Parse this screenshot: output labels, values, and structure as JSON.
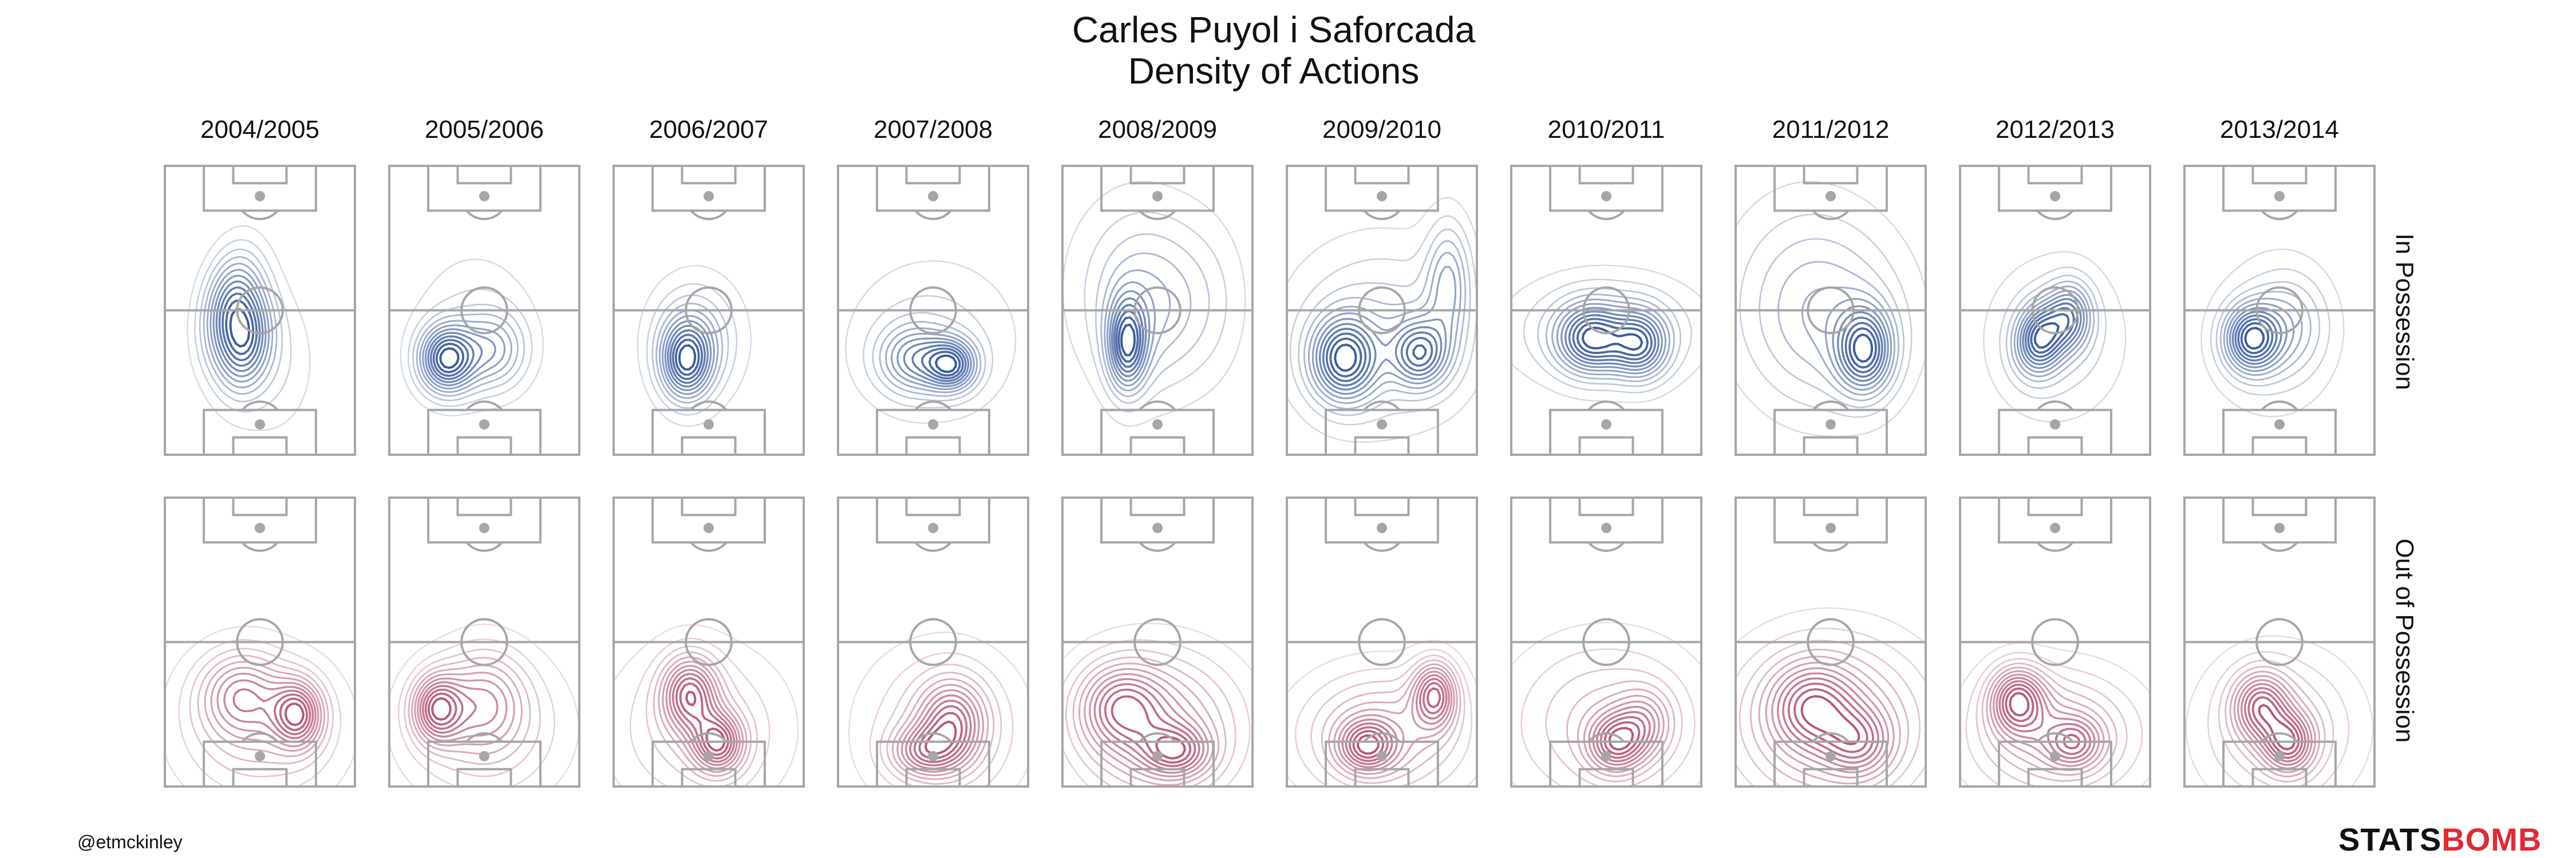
{
  "chart_data": {
    "type": "contour-density",
    "title_lines": [
      "Carles Puyol i Saforcada",
      "Density of Actions"
    ],
    "seasons": [
      "2004/2005",
      "2005/2006",
      "2006/2007",
      "2007/2008",
      "2008/2009",
      "2009/2010",
      "2010/2011",
      "2011/2012",
      "2012/2013",
      "2013/2014"
    ],
    "rows": [
      {
        "label": "In Possession",
        "color": "#2b4e94"
      },
      {
        "label": "Out of Possession",
        "color": "#b04a6e"
      }
    ],
    "blobs": {
      "in": [
        [
          [
            0.35,
            0.49,
            0.1,
            0.14,
            1.0,
            25
          ],
          [
            0.43,
            0.62,
            0.09,
            0.12,
            0.8,
            25
          ],
          [
            0.55,
            0.68,
            0.17,
            0.18,
            0.25,
            0
          ]
        ],
        [
          [
            0.3,
            0.67,
            0.1,
            0.08,
            1.0,
            0
          ],
          [
            0.55,
            0.64,
            0.12,
            0.09,
            0.45,
            0
          ],
          [
            0.45,
            0.55,
            0.22,
            0.18,
            0.2,
            0
          ]
        ],
        [
          [
            0.38,
            0.68,
            0.09,
            0.09,
            1.0,
            0
          ],
          [
            0.42,
            0.6,
            0.14,
            0.12,
            0.45,
            0
          ],
          [
            0.45,
            0.6,
            0.22,
            0.2,
            0.15,
            0
          ]
        ],
        [
          [
            0.6,
            0.69,
            0.09,
            0.06,
            0.7,
            0
          ],
          [
            0.4,
            0.67,
            0.13,
            0.08,
            0.5,
            0
          ],
          [
            0.5,
            0.6,
            0.32,
            0.2,
            0.2,
            0
          ]
        ],
        [
          [
            0.34,
            0.62,
            0.07,
            0.11,
            0.7,
            0
          ],
          [
            0.45,
            0.5,
            0.2,
            0.2,
            0.3,
            0
          ],
          [
            0.38,
            0.38,
            0.3,
            0.25,
            0.12,
            0
          ],
          [
            0.78,
            0.48,
            0.15,
            0.2,
            0.1,
            0
          ]
        ],
        [
          [
            0.3,
            0.67,
            0.12,
            0.1,
            0.5,
            0
          ],
          [
            0.7,
            0.65,
            0.1,
            0.08,
            0.4,
            0
          ],
          [
            0.85,
            0.4,
            0.08,
            0.15,
            0.25,
            0
          ],
          [
            0.5,
            0.58,
            0.34,
            0.22,
            0.2,
            0
          ]
        ],
        [
          [
            0.42,
            0.6,
            0.12,
            0.08,
            0.6,
            0
          ],
          [
            0.68,
            0.62,
            0.1,
            0.08,
            0.55,
            0
          ],
          [
            0.5,
            0.57,
            0.34,
            0.13,
            0.3,
            0
          ]
        ],
        [
          [
            0.68,
            0.64,
            0.1,
            0.1,
            0.5,
            0
          ],
          [
            0.5,
            0.55,
            0.3,
            0.22,
            0.2,
            0
          ],
          [
            0.35,
            0.4,
            0.3,
            0.25,
            0.1,
            0
          ]
        ],
        [
          [
            0.42,
            0.6,
            0.09,
            0.08,
            0.7,
            -30
          ],
          [
            0.58,
            0.52,
            0.08,
            0.08,
            0.5,
            0
          ],
          [
            0.5,
            0.6,
            0.26,
            0.2,
            0.2,
            0
          ]
        ],
        [
          [
            0.35,
            0.6,
            0.1,
            0.08,
            0.8,
            0
          ],
          [
            0.55,
            0.55,
            0.14,
            0.12,
            0.3,
            0
          ],
          [
            0.45,
            0.6,
            0.25,
            0.22,
            0.15,
            0
          ]
        ]
      ],
      "out": [
        [
          [
            0.7,
            0.75,
            0.09,
            0.08,
            0.6,
            0
          ],
          [
            0.4,
            0.68,
            0.15,
            0.1,
            0.4,
            0
          ],
          [
            0.5,
            0.8,
            0.3,
            0.18,
            0.3,
            0
          ]
        ],
        [
          [
            0.25,
            0.73,
            0.09,
            0.08,
            0.7,
            0
          ],
          [
            0.5,
            0.7,
            0.15,
            0.12,
            0.4,
            0
          ],
          [
            0.5,
            0.8,
            0.3,
            0.18,
            0.3,
            0
          ]
        ],
        [
          [
            0.4,
            0.68,
            0.1,
            0.09,
            0.6,
            0
          ],
          [
            0.55,
            0.85,
            0.09,
            0.07,
            0.6,
            0
          ],
          [
            0.45,
            0.8,
            0.32,
            0.2,
            0.25,
            0
          ]
        ],
        [
          [
            0.6,
            0.78,
            0.12,
            0.1,
            0.5,
            0
          ],
          [
            0.45,
            0.88,
            0.12,
            0.06,
            0.4,
            0
          ],
          [
            0.55,
            0.8,
            0.3,
            0.2,
            0.25,
            0
          ]
        ],
        [
          [
            0.5,
            0.8,
            0.3,
            0.18,
            0.35,
            0
          ],
          [
            0.3,
            0.72,
            0.15,
            0.1,
            0.3,
            0
          ],
          [
            0.6,
            0.88,
            0.12,
            0.06,
            0.3,
            0
          ]
        ],
        [
          [
            0.78,
            0.68,
            0.08,
            0.08,
            0.5,
            0
          ],
          [
            0.5,
            0.82,
            0.3,
            0.15,
            0.35,
            0
          ],
          [
            0.42,
            0.86,
            0.1,
            0.06,
            0.4,
            0
          ]
        ],
        [
          [
            0.55,
            0.85,
            0.1,
            0.07,
            0.5,
            0
          ],
          [
            0.7,
            0.78,
            0.1,
            0.08,
            0.3,
            0
          ],
          [
            0.5,
            0.78,
            0.35,
            0.2,
            0.3,
            0
          ]
        ],
        [
          [
            0.5,
            0.78,
            0.35,
            0.2,
            0.35,
            0
          ],
          [
            0.4,
            0.72,
            0.15,
            0.1,
            0.3,
            0
          ],
          [
            0.65,
            0.85,
            0.12,
            0.08,
            0.25,
            0
          ]
        ],
        [
          [
            0.3,
            0.7,
            0.1,
            0.08,
            0.5,
            0
          ],
          [
            0.5,
            0.82,
            0.3,
            0.15,
            0.35,
            0
          ],
          [
            0.6,
            0.85,
            0.1,
            0.06,
            0.3,
            0
          ]
        ],
        [
          [
            0.4,
            0.72,
            0.1,
            0.08,
            0.5,
            0
          ],
          [
            0.55,
            0.85,
            0.09,
            0.07,
            0.5,
            0
          ],
          [
            0.5,
            0.8,
            0.28,
            0.18,
            0.3,
            0
          ]
        ]
      ]
    }
  },
  "footer": {
    "credit": "@etmckinley",
    "logo_part_1": "STATS",
    "logo_part_2": "BOMB"
  }
}
